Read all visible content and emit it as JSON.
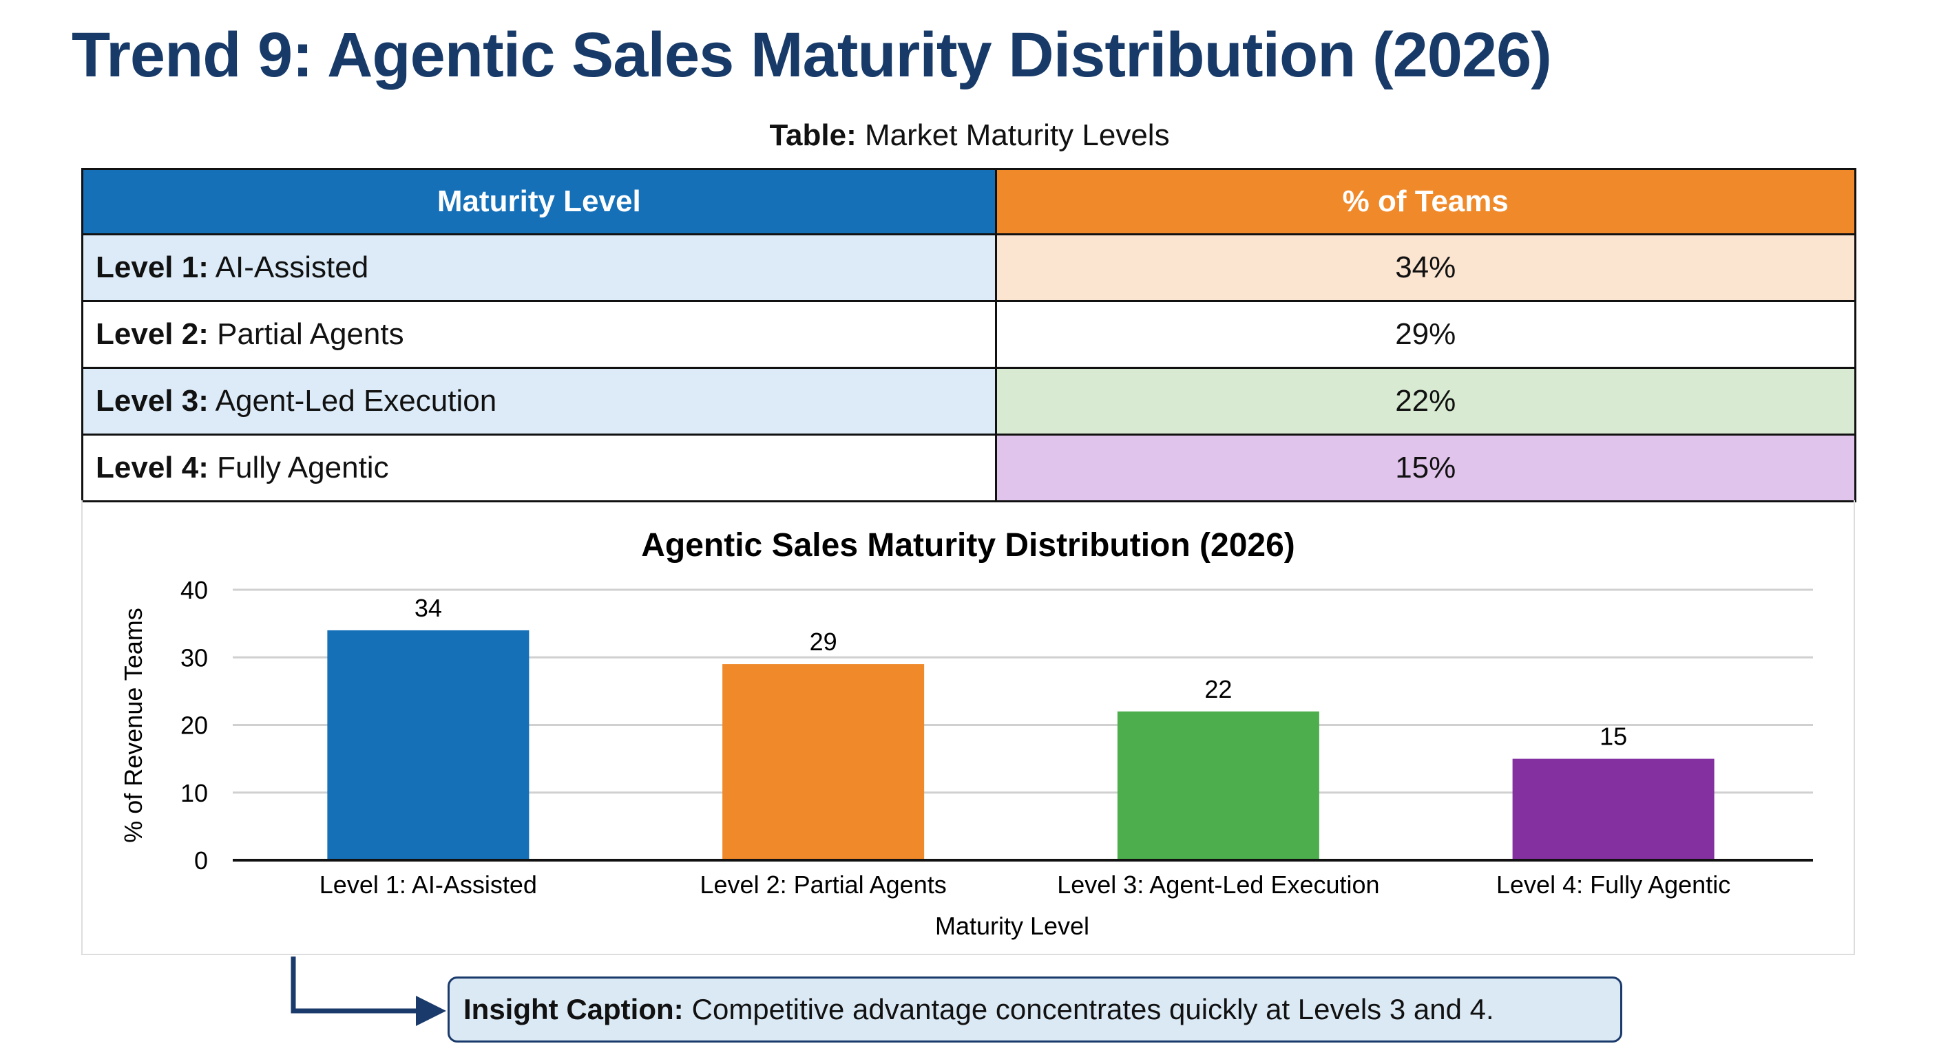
{
  "title": "Trend 9: Agentic Sales Maturity Distribution (2026)",
  "table_caption": {
    "label": "Table:",
    "text": "Market Maturity Levels"
  },
  "table": {
    "headers": [
      "Maturity Level",
      "% of Teams"
    ],
    "header_colors": [
      "#1570b8",
      "#f0892a"
    ],
    "rows": [
      {
        "level": "Level 1:",
        "name": "AI-Assisted",
        "pct": "34%",
        "left_bg": "#dcebf7",
        "right_bg": "#fbe4d0"
      },
      {
        "level": "Level 2:",
        "name": "Partial Agents",
        "pct": "29%",
        "left_bg": "#ffffff",
        "right_bg": "#ffffff"
      },
      {
        "level": "Level 3:",
        "name": "Agent-Led Execution",
        "pct": "22%",
        "left_bg": "#dcebf7",
        "right_bg": "#d8ebd2"
      },
      {
        "level": "Level 4:",
        "name": "Fully Agentic",
        "pct": "15%",
        "left_bg": "#ffffff",
        "right_bg": "#e0c4ec"
      }
    ]
  },
  "chart_data": {
    "type": "bar",
    "title": "Agentic Sales Maturity Distribution (2026)",
    "categories": [
      "Level 1: AI-Assisted",
      "Level 2: Partial Agents",
      "Level 3: Agent-Led Execution",
      "Level 4: Fully Agentic"
    ],
    "values": [
      34,
      29,
      22,
      15
    ],
    "data_labels": [
      "34",
      "29",
      "22",
      "15"
    ],
    "colors": [
      "#1570b8",
      "#f0892a",
      "#4cae4c",
      "#8430a0"
    ],
    "xlabel": "Maturity Level",
    "ylabel": "% of Revenue Teams",
    "ylim": [
      0,
      40
    ],
    "yticks": [
      "0",
      "10",
      "20",
      "30",
      "40"
    ],
    "grid": true
  },
  "caption": {
    "label": "Insight Caption:",
    "text": "Competitive advantage concentrates quickly at Levels 3 and 4."
  }
}
